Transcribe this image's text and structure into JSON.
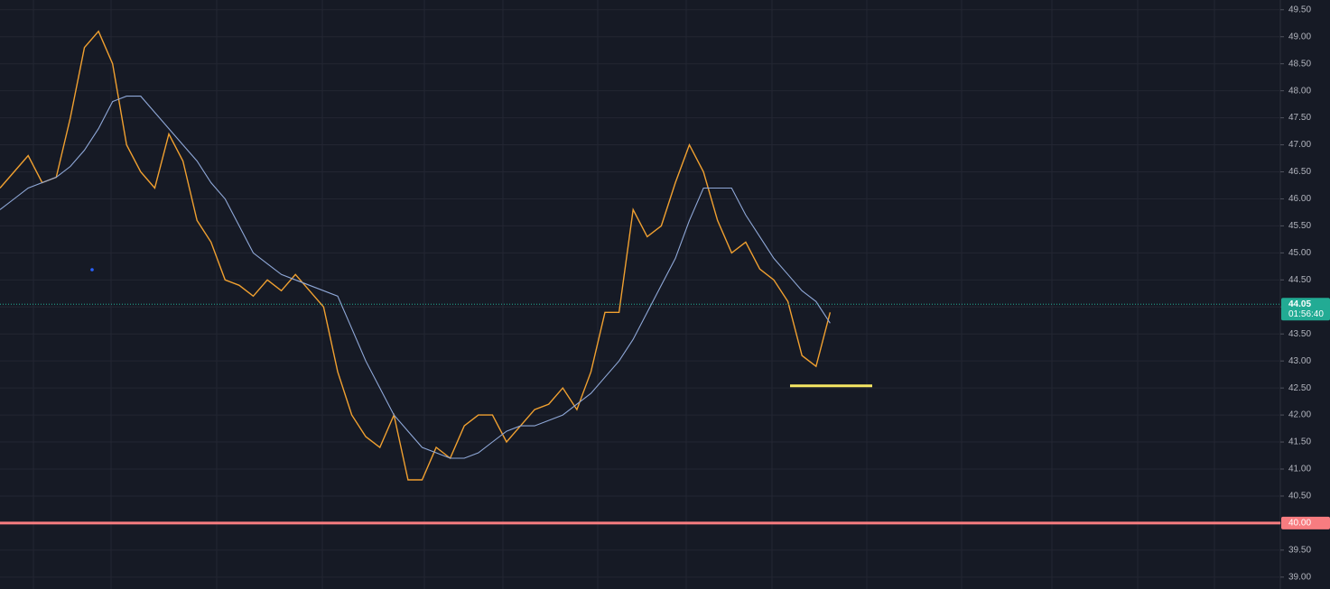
{
  "chart_data": {
    "type": "line",
    "ylim": [
      38.78,
      49.68
    ],
    "yticks": [
      {
        "value": 39,
        "label": "39.00"
      },
      {
        "value": 39.5,
        "label": "39.50"
      },
      {
        "value": 40,
        "label": "40.00"
      },
      {
        "value": 40.5,
        "label": "40.50"
      },
      {
        "value": 41,
        "label": "41.00"
      },
      {
        "value": 41.5,
        "label": "41.50"
      },
      {
        "value": 42,
        "label": "42.00"
      },
      {
        "value": 42.5,
        "label": "42.50"
      },
      {
        "value": 43,
        "label": "43.00"
      },
      {
        "value": 43.5,
        "label": "43.50"
      },
      {
        "value": 44,
        "label": "44.00"
      },
      {
        "value": 44.5,
        "label": "44.50"
      },
      {
        "value": 45,
        "label": "45.00"
      },
      {
        "value": 45.5,
        "label": "45.50"
      },
      {
        "value": 46,
        "label": "46.00"
      },
      {
        "value": 46.5,
        "label": "46.50"
      },
      {
        "value": 47,
        "label": "47.00"
      },
      {
        "value": 47.5,
        "label": "47.50"
      },
      {
        "value": 48,
        "label": "48.00"
      },
      {
        "value": 48.5,
        "label": "48.50"
      },
      {
        "value": 49,
        "label": "49.00"
      },
      {
        "value": 49.5,
        "label": "49.50"
      }
    ],
    "grid": true,
    "series": [
      {
        "color": "#f0a030",
        "values": [
          46.2,
          46.5,
          46.8,
          46.3,
          46.4,
          47.5,
          48.8,
          49.1,
          48.5,
          47.0,
          46.5,
          46.2,
          47.2,
          46.7,
          45.6,
          45.2,
          44.5,
          44.4,
          44.2,
          44.5,
          44.3,
          44.6,
          44.3,
          44.0,
          42.8,
          42.0,
          41.6,
          41.4,
          42.0,
          40.8,
          40.8,
          41.4,
          41.2,
          41.8,
          42.0,
          42.0,
          41.5,
          41.8,
          42.1,
          42.2,
          42.5,
          42.1,
          42.8,
          43.9,
          43.9,
          45.8,
          45.3,
          45.5,
          46.3,
          47.0,
          46.5,
          45.6,
          45.0,
          45.2,
          44.7,
          44.5,
          44.1,
          43.1,
          42.9,
          43.9,
          null,
          null,
          null,
          null,
          null,
          null,
          null,
          null,
          null,
          null,
          null,
          null,
          null,
          null,
          null,
          null,
          null,
          null,
          null,
          null,
          null,
          null,
          null,
          null,
          null,
          null,
          null,
          null,
          null,
          null,
          null,
          null
        ]
      },
      {
        "color": "#8fa8d8",
        "values": [
          45.8,
          46.0,
          46.2,
          46.3,
          46.4,
          46.6,
          46.9,
          47.3,
          47.8,
          47.9,
          47.9,
          47.6,
          47.3,
          47.0,
          46.7,
          46.3,
          46.0,
          45.5,
          45.0,
          44.8,
          44.6,
          44.5,
          44.4,
          44.3,
          44.2,
          43.6,
          43.0,
          42.5,
          42.0,
          41.7,
          41.4,
          41.3,
          41.2,
          41.2,
          41.3,
          41.5,
          41.7,
          41.8,
          41.8,
          41.9,
          42.0,
          42.2,
          42.4,
          42.7,
          43.0,
          43.4,
          43.9,
          44.4,
          44.9,
          45.6,
          46.2,
          46.2,
          46.2,
          45.7,
          45.3,
          44.9,
          44.6,
          44.3,
          44.1,
          43.7,
          null,
          null,
          null,
          null,
          null,
          null,
          null,
          null,
          null,
          null,
          null,
          null,
          null,
          null,
          null,
          null,
          null,
          null,
          null,
          null,
          null,
          null,
          null,
          null,
          null,
          null,
          null,
          null,
          null,
          null,
          null,
          null
        ]
      }
    ],
    "levels": [
      {
        "value": 40,
        "label": "40.00",
        "color": "#f77c80"
      },
      {
        "value": 42.54,
        "color": "#f5e663"
      }
    ],
    "last_price": {
      "value": 44.05,
      "label": "44.05",
      "countdown": "01:56:40",
      "color": "#22ab94"
    }
  }
}
